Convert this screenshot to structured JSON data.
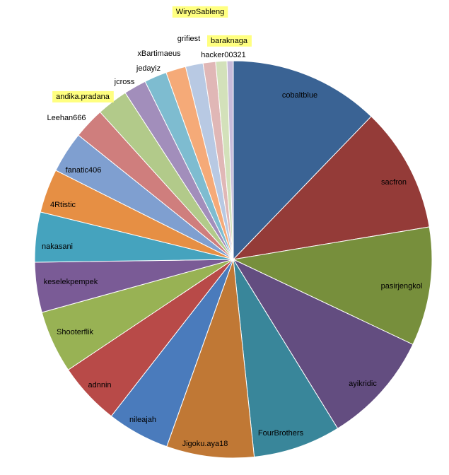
{
  "chart_data": {
    "type": "pie",
    "title": "",
    "legend": "none",
    "start_angle": "12 o'clock, clockwise",
    "slices": [
      {
        "label": "cobaltblue",
        "value": 12.0,
        "color": "#3A6394",
        "highlight": false
      },
      {
        "label": "sacfron",
        "value": 10.0,
        "color": "#943B38",
        "highlight": false
      },
      {
        "label": "pasirjengkol",
        "value": 9.5,
        "color": "#778F3C",
        "highlight": false
      },
      {
        "label": "ayikridic",
        "value": 9.0,
        "color": "#634D80",
        "highlight": false
      },
      {
        "label": "FourBrothers",
        "value": 7.0,
        "color": "#39869A",
        "highlight": false
      },
      {
        "label": "Jigoku.aya18",
        "value": 7.0,
        "color": "#C07835",
        "highlight": false
      },
      {
        "label": "nileajah",
        "value": 5.0,
        "color": "#4A7BBC",
        "highlight": false
      },
      {
        "label": "adnnin",
        "value": 5.0,
        "color": "#B84A48",
        "highlight": false
      },
      {
        "label": "Shooterflik",
        "value": 5.0,
        "color": "#98B254",
        "highlight": false
      },
      {
        "label": "keselekpempek",
        "value": 4.0,
        "color": "#7A5B96",
        "highlight": false
      },
      {
        "label": "nakasani",
        "value": 4.0,
        "color": "#45A3BE",
        "highlight": false
      },
      {
        "label": "4Rtistic",
        "value": 3.5,
        "color": "#E68F44",
        "highlight": false
      },
      {
        "label": "fanatic406",
        "value": 3.3,
        "color": "#7F9FD0",
        "highlight": false
      },
      {
        "label": "Leehan666",
        "value": 2.5,
        "color": "#CF7E7D",
        "highlight": false
      },
      {
        "label": "andika.pradana",
        "value": 2.5,
        "color": "#B2CA8A",
        "highlight": true
      },
      {
        "label": "jcross",
        "value": 1.8,
        "color": "#A28EBB",
        "highlight": false
      },
      {
        "label": "jedayiz",
        "value": 1.8,
        "color": "#7EBCD0",
        "highlight": false
      },
      {
        "label": "xBartimaeus",
        "value": 1.6,
        "color": "#F5AA78",
        "highlight": false
      },
      {
        "label": "grifiest",
        "value": 1.4,
        "color": "#B8C9E3",
        "highlight": false
      },
      {
        "label": "WiryoSableng",
        "value": 1.0,
        "color": "#E0B7B6",
        "highlight": true
      },
      {
        "label": "baraknaga",
        "value": 0.9,
        "color": "#D3E1BA",
        "highlight": true
      },
      {
        "label": "hacker00321",
        "value": 0.5,
        "color": "#C7BBDA",
        "highlight": false
      }
    ]
  }
}
